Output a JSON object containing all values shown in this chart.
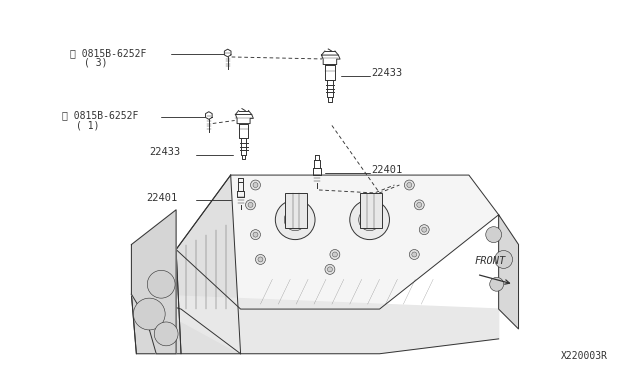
{
  "background_color": "#ffffff",
  "line_color": "#333333",
  "text_color": "#333333",
  "diagram_id": "X220003R",
  "figsize": [
    6.4,
    3.72
  ],
  "dpi": 100,
  "labels": {
    "bolt_top_text": "Ⓒ0815B-6252F",
    "bolt_top_sub": "( 3)",
    "bolt_mid_text": "Ⓒ0815B-6252F",
    "bolt_mid_sub": "( 1)",
    "coil_top": "22433",
    "coil_mid": "22433",
    "plug_top": "22401",
    "plug_bot": "22401",
    "front": "FRONT"
  }
}
